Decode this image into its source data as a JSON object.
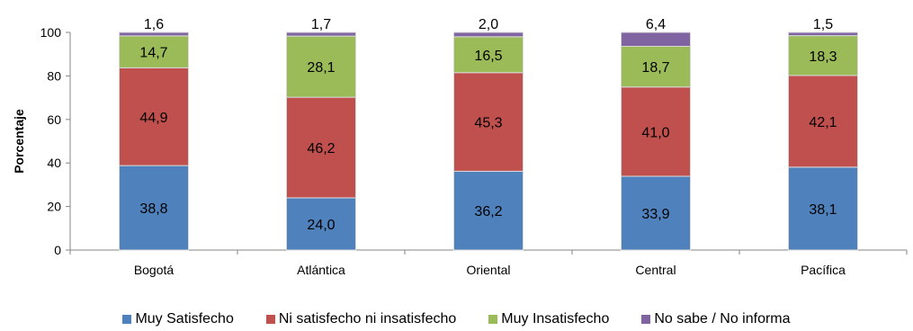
{
  "chart_data": {
    "type": "bar",
    "stacked": true,
    "categories": [
      "Bogotá",
      "Atlántica",
      "Oriental",
      "Central",
      "Pacífica"
    ],
    "ylabel": "Porcentaje",
    "xlabel": "",
    "ylim": [
      0,
      100
    ],
    "yticks": [
      "0",
      "20",
      "40",
      "60",
      "80",
      "100"
    ],
    "legend_position": "bottom",
    "series": [
      {
        "name": "Muy Satisfecho",
        "color": "#4F81BD",
        "values": [
          38.8,
          24.0,
          36.2,
          33.9,
          38.1
        ],
        "labels": [
          "38,8",
          "24,0",
          "36,2",
          "33,9",
          "38,1"
        ],
        "label_color": "#000000"
      },
      {
        "name": "Ni satisfecho ni insatisfecho",
        "color": "#C0504D",
        "values": [
          44.9,
          46.2,
          45.3,
          41.0,
          42.1
        ],
        "labels": [
          "44,9",
          "46,2",
          "45,3",
          "41,0",
          "42,1"
        ],
        "label_color": "#000000"
      },
      {
        "name": "Muy Insatisfecho",
        "color": "#9BBB59",
        "values": [
          14.7,
          28.1,
          16.5,
          18.7,
          18.3
        ],
        "labels": [
          "14,7",
          "28,1",
          "16,5",
          "18,7",
          "18,3"
        ],
        "label_color": "#000000"
      },
      {
        "name": "No sabe / No informa",
        "color": "#8064A2",
        "values": [
          1.6,
          1.7,
          2.0,
          6.4,
          1.5
        ],
        "labels": [
          "1,6",
          "1,7",
          "2,0",
          "6,4",
          "1,5"
        ],
        "label_color": "#000000"
      }
    ]
  }
}
